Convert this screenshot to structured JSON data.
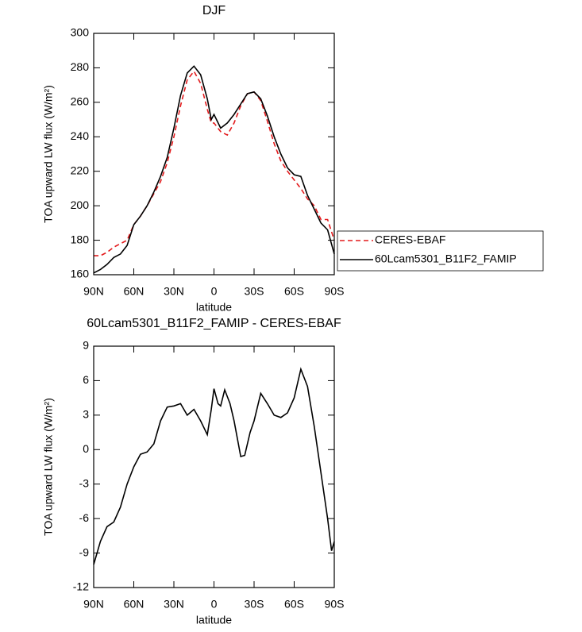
{
  "chart_data": [
    {
      "type": "line",
      "title": "DJF",
      "xlabel": "latitude",
      "ylabel": "TOA upward LW flux (W/m²)",
      "x": [
        90,
        85,
        80,
        75,
        70,
        65,
        60,
        55,
        50,
        45,
        40,
        35,
        30,
        25,
        20,
        15,
        10,
        5,
        2,
        0,
        -5,
        -10,
        -15,
        -20,
        -25,
        -30,
        -35,
        -40,
        -45,
        -50,
        -55,
        -60,
        -65,
        -70,
        -75,
        -80,
        -85,
        -90
      ],
      "series": [
        {
          "name": "CERES-EBAF",
          "color": "#e31a1c",
          "dash": true,
          "values": [
            171,
            171,
            173,
            176,
            178,
            180,
            189,
            194,
            200,
            207,
            214,
            225,
            240,
            258,
            273,
            278,
            271,
            256,
            248,
            248,
            243,
            241,
            248,
            258,
            265,
            266,
            261,
            249,
            236,
            226,
            220,
            215,
            210,
            204,
            200,
            192,
            192,
            180
          ]
        },
        {
          "name": "60Lcam5301_B11F2_FAMIP",
          "color": "#000000",
          "dash": false,
          "values": [
            161,
            163,
            166,
            170,
            172,
            177,
            189,
            194,
            200,
            208,
            217,
            228,
            245,
            264,
            277,
            281,
            276,
            262,
            250,
            253,
            245,
            248,
            253,
            259,
            265,
            266,
            262,
            252,
            240,
            230,
            222,
            218,
            217,
            206,
            198,
            190,
            186,
            172
          ]
        }
      ],
      "xlim": [
        90,
        -90
      ],
      "xticks": [
        {
          "value": 90,
          "label": "90N"
        },
        {
          "value": 60,
          "label": "60N"
        },
        {
          "value": 30,
          "label": "30N"
        },
        {
          "value": 0,
          "label": "0"
        },
        {
          "value": -30,
          "label": "30S"
        },
        {
          "value": -60,
          "label": "60S"
        },
        {
          "value": -90,
          "label": "90S"
        }
      ],
      "ylim": [
        160,
        300
      ],
      "yticks": [
        160,
        180,
        200,
        220,
        240,
        260,
        280,
        300
      ],
      "legend": "outside right"
    },
    {
      "type": "line",
      "title": "60Lcam5301_B11F2_FAMIP - CERES-EBAF",
      "xlabel": "latitude",
      "ylabel": "TOA upward LW flux (W/m²)",
      "x": [
        90,
        85,
        80,
        75,
        70,
        65,
        60,
        55,
        50,
        45,
        40,
        35,
        30,
        25,
        20,
        15,
        10,
        5,
        2,
        0,
        -3,
        -5,
        -8,
        -12,
        -15,
        -20,
        -23,
        -27,
        -30,
        -35,
        -40,
        -45,
        -50,
        -55,
        -60,
        -65,
        -70,
        -75,
        -80,
        -85,
        -88,
        -90
      ],
      "series": [
        {
          "color": "#000000",
          "dash": false,
          "values": [
            -10,
            -8,
            -6.7,
            -6.3,
            -5,
            -3,
            -1.5,
            -0.4,
            -0.2,
            0.5,
            2.5,
            3.7,
            3.8,
            4,
            3,
            3.5,
            2.5,
            1.3,
            3.5,
            5.3,
            4,
            3.8,
            5.2,
            4,
            2.5,
            -0.6,
            -0.5,
            1.5,
            2.5,
            4.9,
            4,
            3,
            2.8,
            3.2,
            4.5,
            7,
            5.5,
            2,
            -2,
            -6,
            -8.8,
            -8
          ]
        }
      ],
      "xlim": [
        90,
        -90
      ],
      "xticks": [
        {
          "value": 90,
          "label": "90N"
        },
        {
          "value": 60,
          "label": "60N"
        },
        {
          "value": 30,
          "label": "30N"
        },
        {
          "value": 0,
          "label": "0"
        },
        {
          "value": -30,
          "label": "30S"
        },
        {
          "value": -60,
          "label": "60S"
        },
        {
          "value": -90,
          "label": "90S"
        }
      ],
      "ylim": [
        -12,
        9
      ],
      "yticks": [
        -12,
        -9,
        -6,
        -3,
        0,
        3,
        6,
        9
      ]
    }
  ]
}
